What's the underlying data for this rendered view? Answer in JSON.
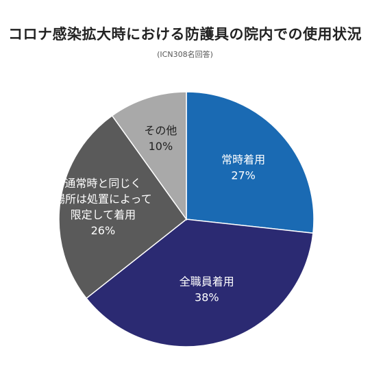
{
  "title": "コロナ感染拡大時における防護具の院内での使用状況",
  "subtitle": "(ICN308名回答)",
  "chart_data": {
    "type": "pie",
    "start_angle_deg": 0,
    "direction": "clockwise",
    "slices": [
      {
        "label_lines": [
          "常時着用"
        ],
        "value": 27,
        "value_label": "27%",
        "color": "#1a6ab3",
        "text_color": "#ffffff"
      },
      {
        "label_lines": [
          "全職員着用"
        ],
        "value": 38,
        "value_label": "38%",
        "color": "#2b2a72",
        "text_color": "#ffffff"
      },
      {
        "label_lines": [
          "通常時と同じく",
          "場所は処置によって",
          "限定して着用"
        ],
        "value": 26,
        "value_label": "26%",
        "color": "#5a5a5a",
        "text_color": "#ffffff"
      },
      {
        "label_lines": [
          "その他"
        ],
        "value": 10,
        "value_label": "10%",
        "color": "#a9a9a9",
        "text_color": "#222222"
      }
    ]
  }
}
